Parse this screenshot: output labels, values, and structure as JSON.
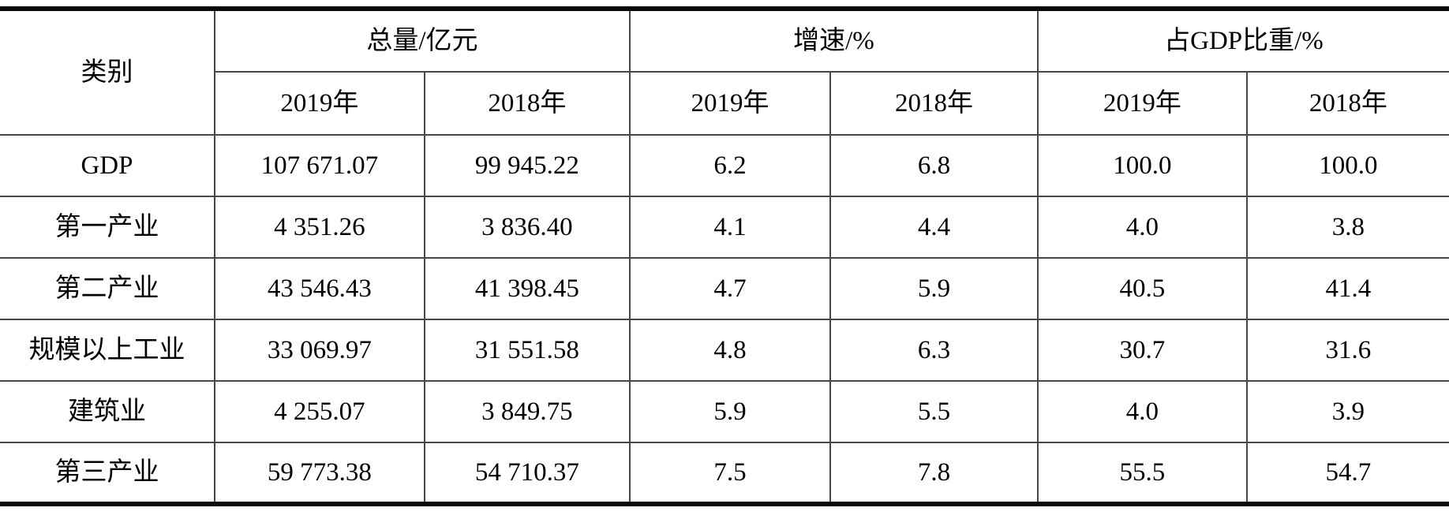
{
  "table": {
    "header": {
      "category": "类别",
      "groups": [
        {
          "label": "总量/亿元",
          "years": [
            "2019年",
            "2018年"
          ]
        },
        {
          "label": "增速/%",
          "years": [
            "2019年",
            "2018年"
          ]
        },
        {
          "label": "占GDP比重/%",
          "years": [
            "2019年",
            "2018年"
          ]
        }
      ]
    },
    "rows": [
      {
        "category": "GDP",
        "values": [
          "107 671.07",
          "99 945.22",
          "6.2",
          "6.8",
          "100.0",
          "100.0"
        ]
      },
      {
        "category": "第一产业",
        "values": [
          "4 351.26",
          "3 836.40",
          "4.1",
          "4.4",
          "4.0",
          "3.8"
        ]
      },
      {
        "category": "第二产业",
        "values": [
          "43 546.43",
          "41 398.45",
          "4.7",
          "5.9",
          "40.5",
          "41.4"
        ]
      },
      {
        "category": "规模以上工业",
        "values": [
          "33 069.97",
          "31 551.58",
          "4.8",
          "6.3",
          "30.7",
          "31.6"
        ]
      },
      {
        "category": "建筑业",
        "values": [
          "4 255.07",
          "3 849.75",
          "5.9",
          "5.5",
          "4.0",
          "3.9"
        ]
      },
      {
        "category": "第三产业",
        "values": [
          "59 773.38",
          "54 710.37",
          "7.5",
          "7.8",
          "55.5",
          "54.7"
        ]
      }
    ]
  },
  "colors": {
    "background": "#ffffff",
    "text": "#000000",
    "thin_line": "#474747",
    "thick_line": "#0a0a0a"
  }
}
